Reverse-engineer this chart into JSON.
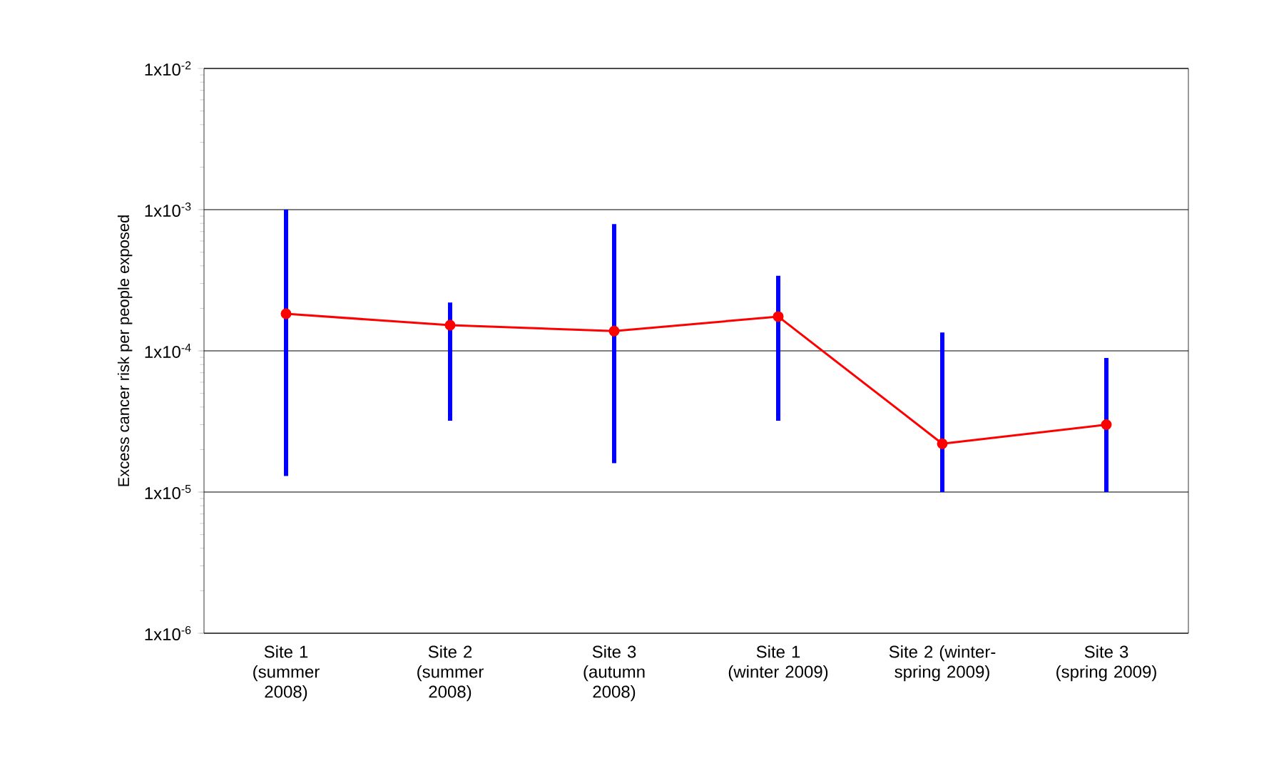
{
  "chart_data": {
    "type": "line",
    "ylabel": "Excess cancer risk per people exposed",
    "categories": [
      "Site 1 (summer 2008)",
      "Site 2 (summer 2008)",
      "Site 3 (autumn 2008)",
      "Site 1 (winter 2009)",
      "Site 2 (winter-spring 2009)",
      "Site 3 (spring 2009)"
    ],
    "series": [
      {
        "color": "#ff0000",
        "values": [
          0.000183,
          0.000152,
          0.000138,
          0.000175,
          2.2e-05,
          3e-05
        ],
        "errors": [
          [
            1.3e-05,
            0.001
          ],
          [
            3.2e-05,
            0.00022
          ],
          [
            1.6e-05,
            0.00079
          ],
          [
            3.2e-05,
            0.00034
          ],
          [
            1e-05,
            0.000135
          ],
          [
            1e-05,
            8.9e-05
          ]
        ]
      }
    ],
    "log": "y",
    "ylim": [
      1e-06,
      0.01
    ],
    "yticks": [
      {
        "value": 1e-06,
        "label": "1x10$^{-6}$"
      },
      {
        "value": 1e-05,
        "label": "1x10$^{-5}$"
      },
      {
        "value": 0.0001,
        "label": "1x10$^{-4}$"
      },
      {
        "value": 0.001,
        "label": "1x10$^{-3}$"
      },
      {
        "value": 0.01,
        "label": "1x10$^{-2}$"
      }
    ],
    "grid": "y",
    "marker": "circle",
    "line_style": "solid"
  }
}
